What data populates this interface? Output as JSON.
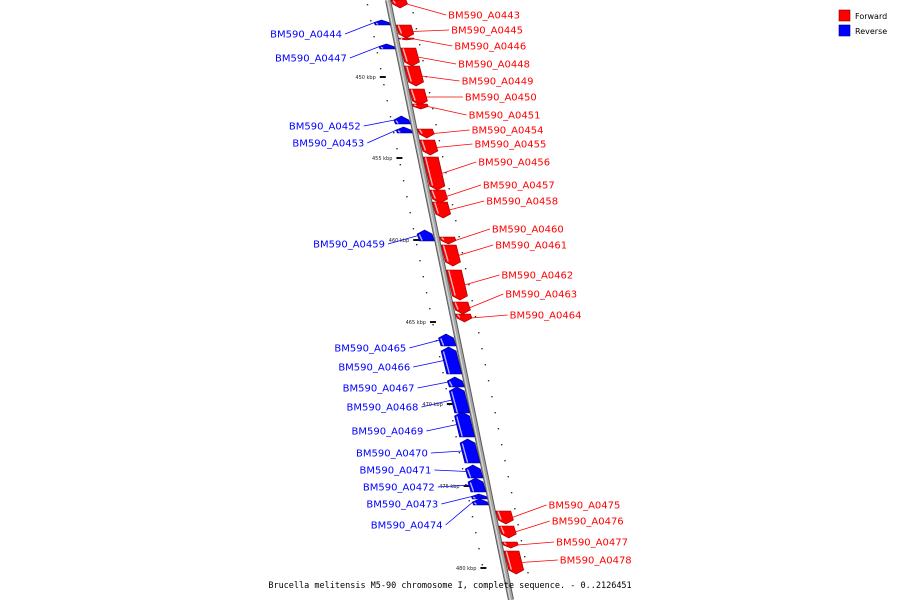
{
  "caption": "Brucella melitensis M5-90 chromosome I, complete sequence. - 0..2126451",
  "colors": {
    "forward": "#ff0000",
    "reverse": "#0000ff",
    "backbone": "#909090"
  },
  "legend": [
    {
      "label": "Forward",
      "color": "#ff0000"
    },
    {
      "label": "Reverse",
      "color": "#0000ff"
    }
  ],
  "ticks": [
    "450 kbp",
    "455 kbp",
    "460 kbp",
    "465 kbp",
    "470 kbp",
    "475 kbp",
    "480 kbp"
  ],
  "genes": [
    {
      "id": "BM590_A0443",
      "strand": "forward"
    },
    {
      "id": "BM590_A0444",
      "strand": "reverse"
    },
    {
      "id": "BM590_A0445",
      "strand": "forward"
    },
    {
      "id": "BM590_A0446",
      "strand": "forward"
    },
    {
      "id": "BM590_A0447",
      "strand": "reverse"
    },
    {
      "id": "BM590_A0448",
      "strand": "forward"
    },
    {
      "id": "BM590_A0449",
      "strand": "forward"
    },
    {
      "id": "BM590_A0450",
      "strand": "forward"
    },
    {
      "id": "BM590_A0451",
      "strand": "forward"
    },
    {
      "id": "BM590_A0452",
      "strand": "reverse"
    },
    {
      "id": "BM590_A0453",
      "strand": "reverse"
    },
    {
      "id": "BM590_A0454",
      "strand": "forward"
    },
    {
      "id": "BM590_A0455",
      "strand": "forward"
    },
    {
      "id": "BM590_A0456",
      "strand": "forward"
    },
    {
      "id": "BM590_A0457",
      "strand": "forward"
    },
    {
      "id": "BM590_A0458",
      "strand": "forward"
    },
    {
      "id": "BM590_A0459",
      "strand": "reverse"
    },
    {
      "id": "BM590_A0460",
      "strand": "forward"
    },
    {
      "id": "BM590_A0461",
      "strand": "forward"
    },
    {
      "id": "BM590_A0462",
      "strand": "forward"
    },
    {
      "id": "BM590_A0463",
      "strand": "forward"
    },
    {
      "id": "BM590_A0464",
      "strand": "forward"
    },
    {
      "id": "BM590_A0465",
      "strand": "reverse"
    },
    {
      "id": "BM590_A0466",
      "strand": "reverse"
    },
    {
      "id": "BM590_A0467",
      "strand": "reverse"
    },
    {
      "id": "BM590_A0468",
      "strand": "reverse"
    },
    {
      "id": "BM590_A0469",
      "strand": "reverse"
    },
    {
      "id": "BM590_A0470",
      "strand": "reverse"
    },
    {
      "id": "BM590_A0471",
      "strand": "reverse"
    },
    {
      "id": "BM590_A0472",
      "strand": "reverse"
    },
    {
      "id": "BM590_A0473",
      "strand": "reverse"
    },
    {
      "id": "BM590_A0474",
      "strand": "reverse"
    },
    {
      "id": "BM590_A0475",
      "strand": "forward"
    },
    {
      "id": "BM590_A0476",
      "strand": "forward"
    },
    {
      "id": "BM590_A0477",
      "strand": "forward"
    },
    {
      "id": "BM590_A0478",
      "strand": "forward"
    }
  ]
}
